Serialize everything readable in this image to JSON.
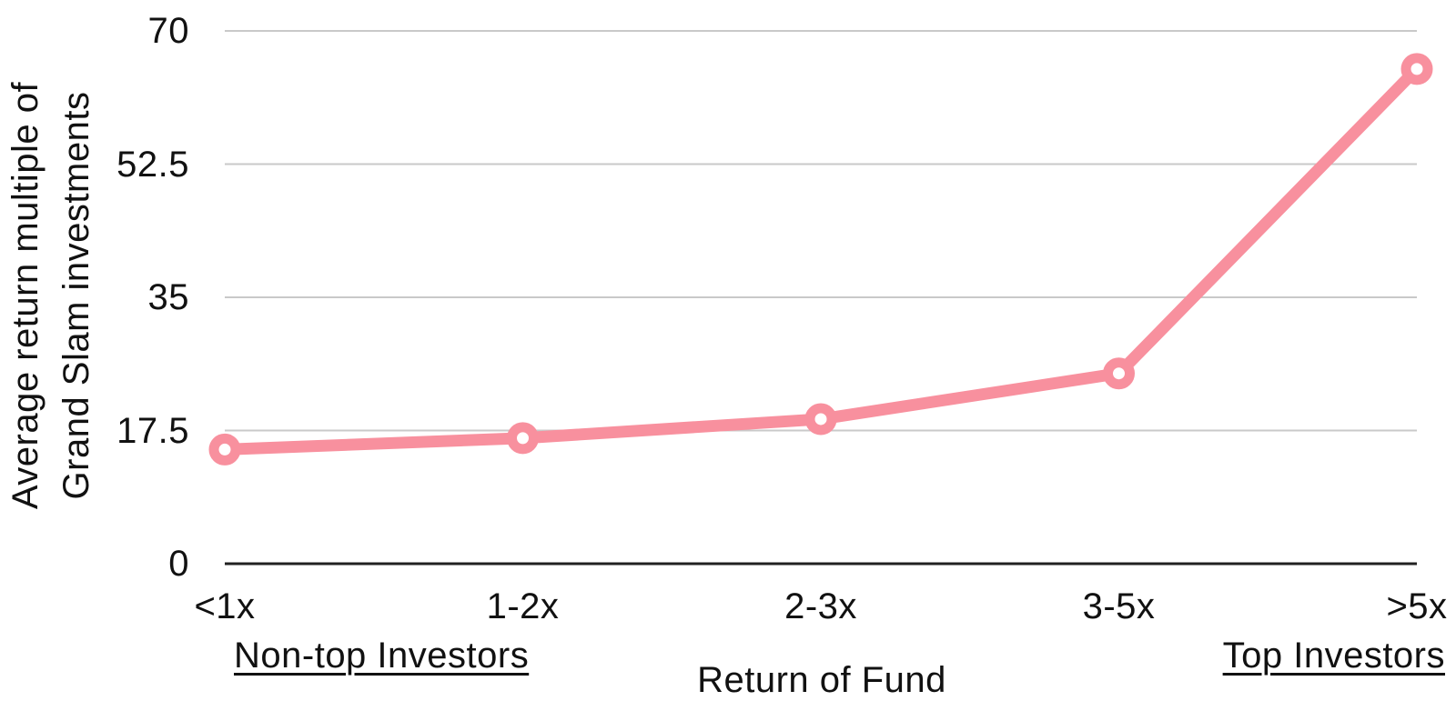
{
  "chart_data": {
    "type": "line",
    "title": "",
    "categories": [
      "<1x",
      "1-2x",
      "2-3x",
      "3-5x",
      ">5x"
    ],
    "values": [
      15,
      16.5,
      19,
      25,
      65
    ],
    "xlabel": "Return of Fund",
    "ylabel": "Average return multiple of Grand Slam investments",
    "ylabel_lines": [
      "Average return multiple of",
      "Grand Slam investments"
    ],
    "yticks": [
      0,
      17.5,
      35,
      52.5,
      70
    ],
    "ylim": [
      0,
      70
    ],
    "grid": "horizontal",
    "legend": "none",
    "marker_style": "ring",
    "annotations": [
      {
        "text": "Non-top Investors",
        "underline": true,
        "position": "bottom-left"
      },
      {
        "text": "Top Investors",
        "underline": true,
        "position": "bottom-right"
      }
    ]
  },
  "colors": {
    "line": "#F8909E",
    "marker_fill": "#FFFFFF",
    "gridline": "#C9C9C9",
    "axis": "#212121",
    "text": "#111111",
    "background": "#FFFFFF"
  }
}
